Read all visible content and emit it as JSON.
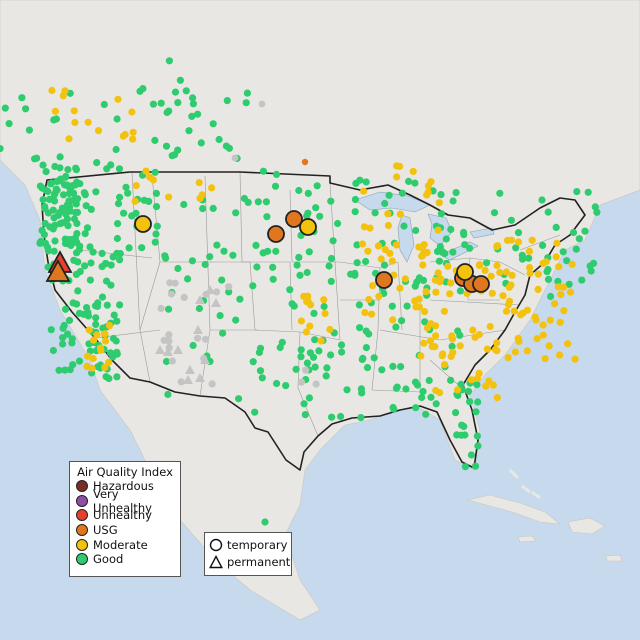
{
  "legend": {
    "title": "Air Quality Index",
    "categories": [
      {
        "label": "Hazardous",
        "color": "#7a2e22"
      },
      {
        "label": "Very Unhealthy",
        "color": "#8f4fa8"
      },
      {
        "label": "Unhealthy",
        "color": "#e6402e"
      },
      {
        "label": "USG",
        "color": "#e0771f"
      },
      {
        "label": "Moderate",
        "color": "#f2c20f"
      },
      {
        "label": "Good",
        "color": "#2ecc6e"
      }
    ]
  },
  "monitor_types": [
    {
      "label": "temporary",
      "shape": "circle"
    },
    {
      "label": "permanent",
      "shape": "triangle"
    }
  ],
  "colors": {
    "water": "#c7d9ec",
    "land": "#e9e7e3",
    "no_data": "#c4c4c4",
    "border": "#222222"
  },
  "featured_monitors": [
    {
      "aqi": "USG",
      "type": "temporary"
    },
    {
      "aqi": "USG",
      "type": "temporary"
    },
    {
      "aqi": "USG",
      "type": "temporary"
    },
    {
      "aqi": "USG",
      "type": "temporary"
    },
    {
      "aqi": "USG",
      "type": "temporary"
    },
    {
      "aqi": "USG",
      "type": "temporary"
    },
    {
      "aqi": "Moderate",
      "type": "temporary"
    },
    {
      "aqi": "Moderate",
      "type": "temporary"
    },
    {
      "aqi": "Moderate",
      "type": "temporary"
    },
    {
      "aqi": "Unhealthy",
      "type": "permanent"
    },
    {
      "aqi": "USG",
      "type": "permanent"
    }
  ]
}
